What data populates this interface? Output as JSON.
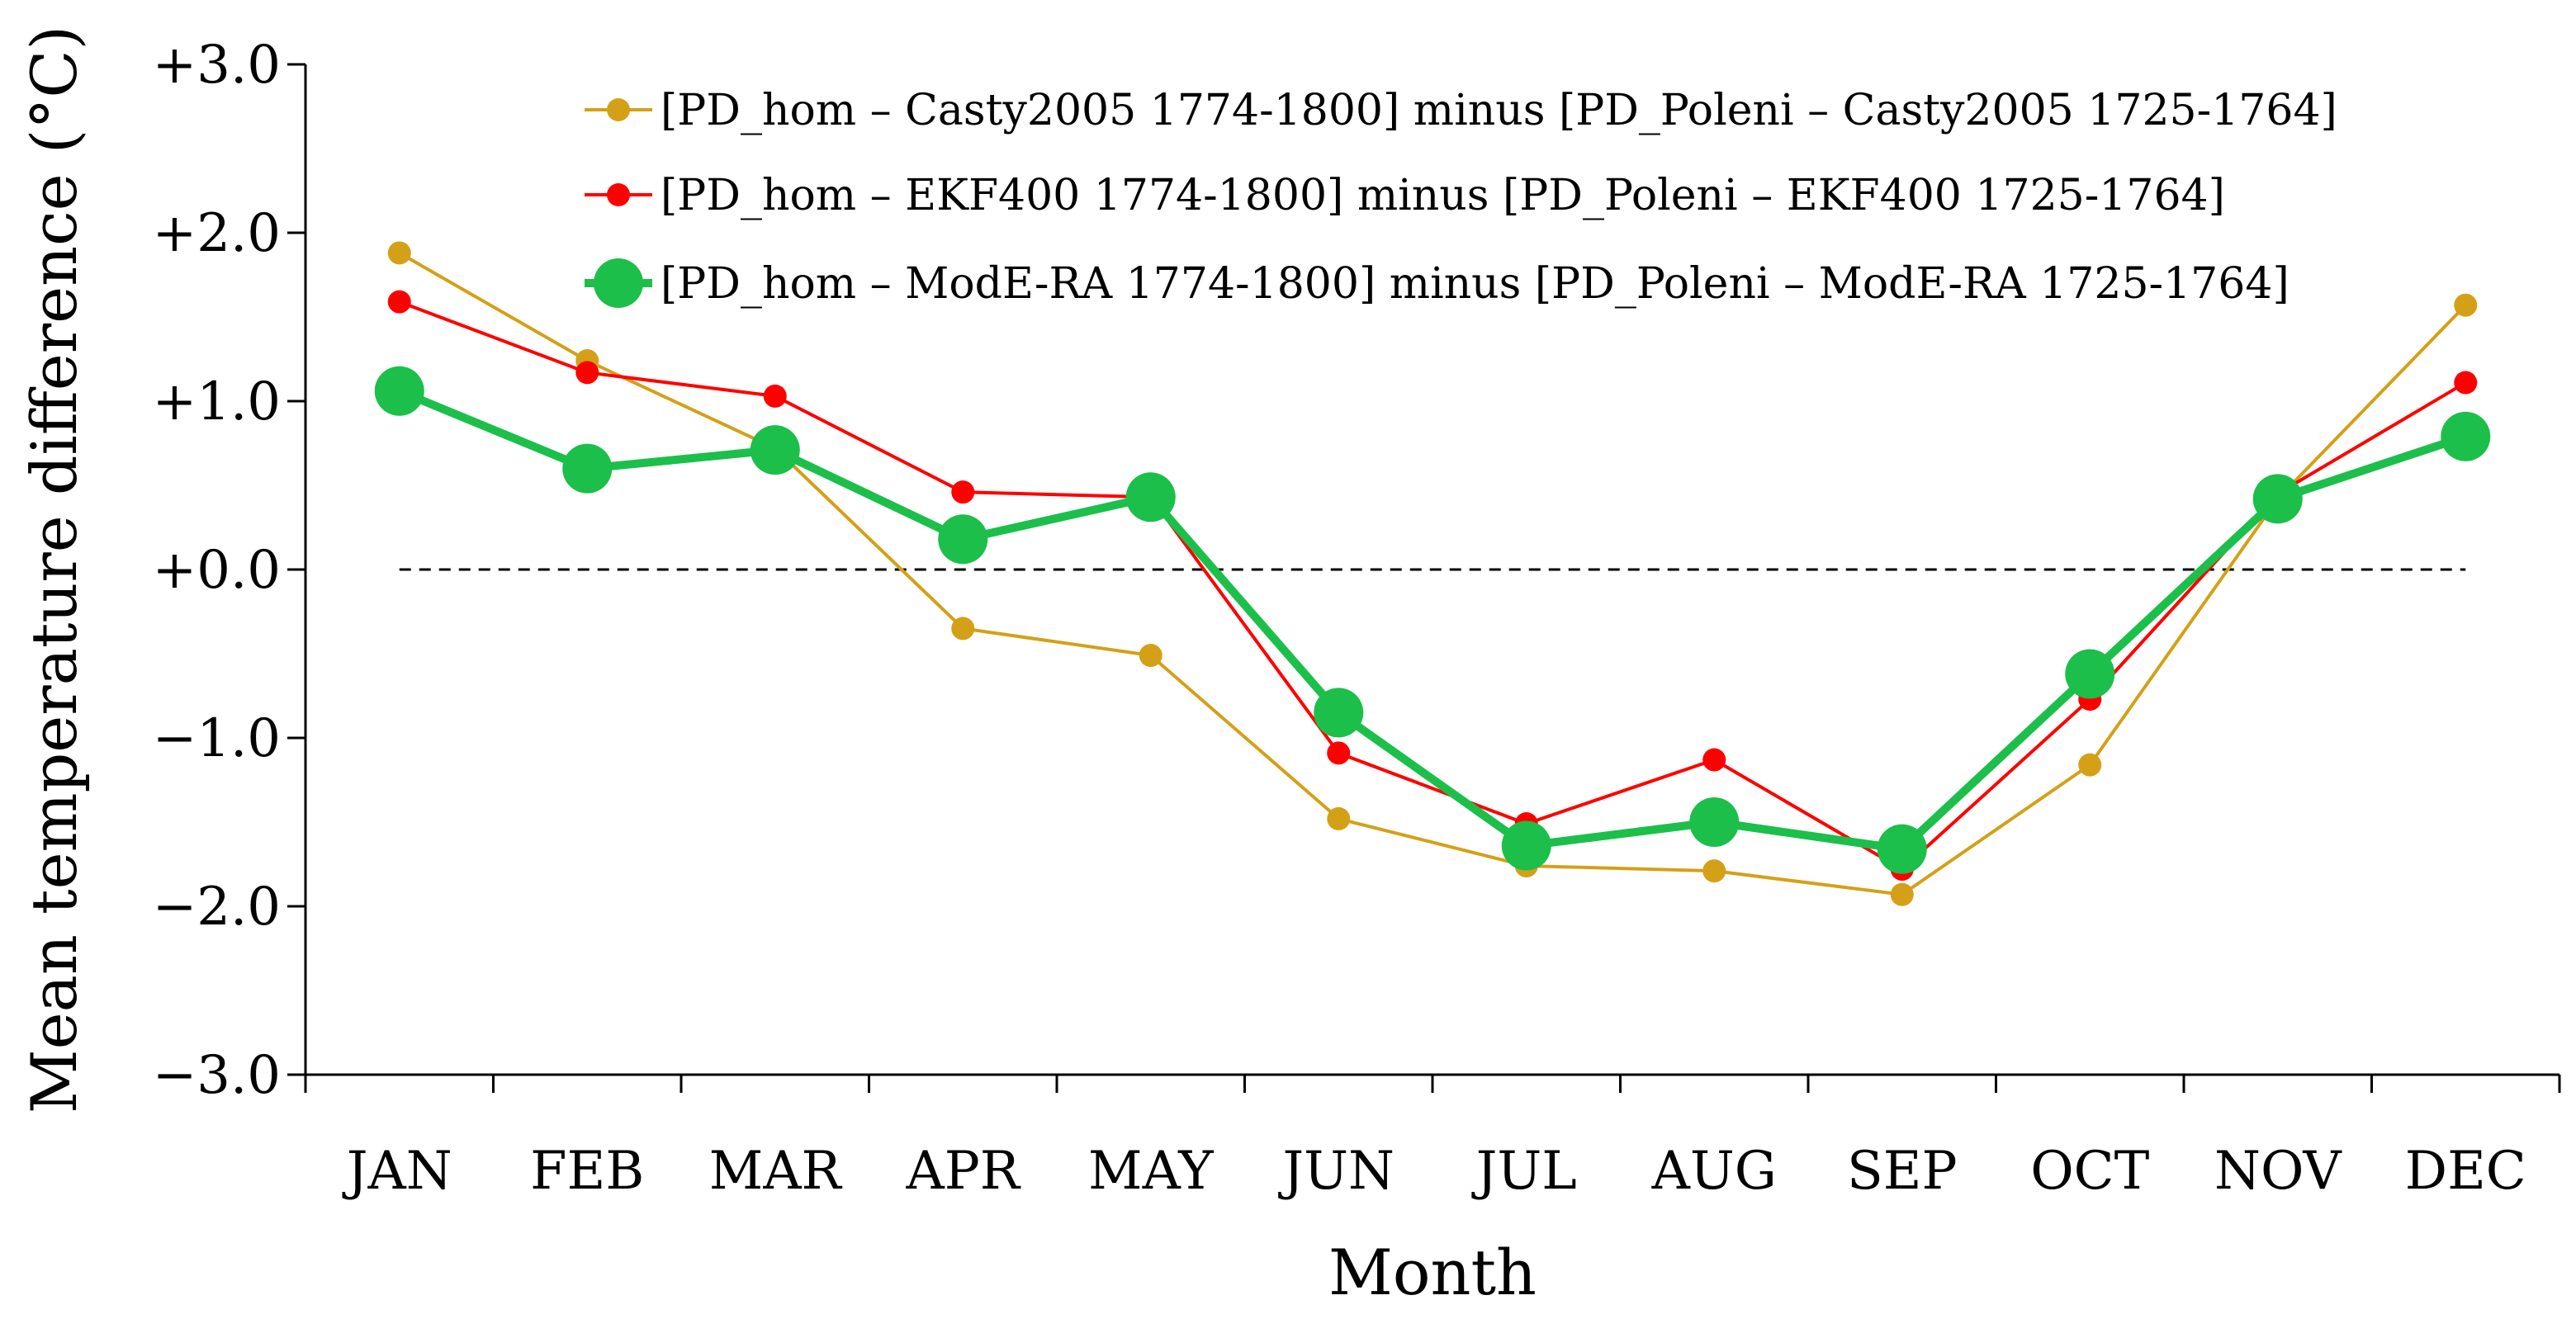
{
  "chart_data": {
    "type": "line",
    "title": "",
    "xlabel": "Month",
    "ylabel": "Mean temperature difference (°C)",
    "categories": [
      "JAN",
      "FEB",
      "MAR",
      "APR",
      "MAY",
      "JUN",
      "JUL",
      "AUG",
      "SEP",
      "OCT",
      "NOV",
      "DEC"
    ],
    "ylim": [
      -3.0,
      3.0
    ],
    "yticks": [
      3.0,
      2.0,
      1.0,
      0.0,
      -1.0,
      -2.0,
      -3.0
    ],
    "ytick_labels": [
      "+3.0",
      "+2.0",
      "+1.0",
      "+0.0",
      "−1.0",
      "−2.0",
      "−3.0"
    ],
    "reference_line": 0.0,
    "legend_position": "top-right",
    "series": [
      {
        "name": "[PD_hom – Casty2005 1774-1800] minus [PD_Poleni – Casty2005 1725-1764]",
        "color": "#D4A017",
        "values": [
          1.88,
          1.24,
          0.72,
          -0.35,
          -0.51,
          -1.48,
          -1.76,
          -1.79,
          -1.93,
          -1.16,
          0.42,
          1.57
        ]
      },
      {
        "name": "[PD_hom – EKF400 1774-1800] minus [PD_Poleni – EKF400 1725-1764]",
        "color": "#FF0000",
        "values": [
          1.59,
          1.17,
          1.03,
          0.46,
          0.43,
          -1.09,
          -1.51,
          -1.13,
          -1.78,
          -0.77,
          0.45,
          1.11
        ]
      },
      {
        "name": "[PD_hom – ModE-RA 1774-1800] minus [PD_Poleni – ModE-RA 1725-1764]",
        "color": "#1BBF4A",
        "values": [
          1.06,
          0.6,
          0.71,
          0.18,
          0.43,
          -0.85,
          -1.64,
          -1.5,
          -1.66,
          -0.62,
          0.42,
          0.79
        ]
      }
    ]
  }
}
